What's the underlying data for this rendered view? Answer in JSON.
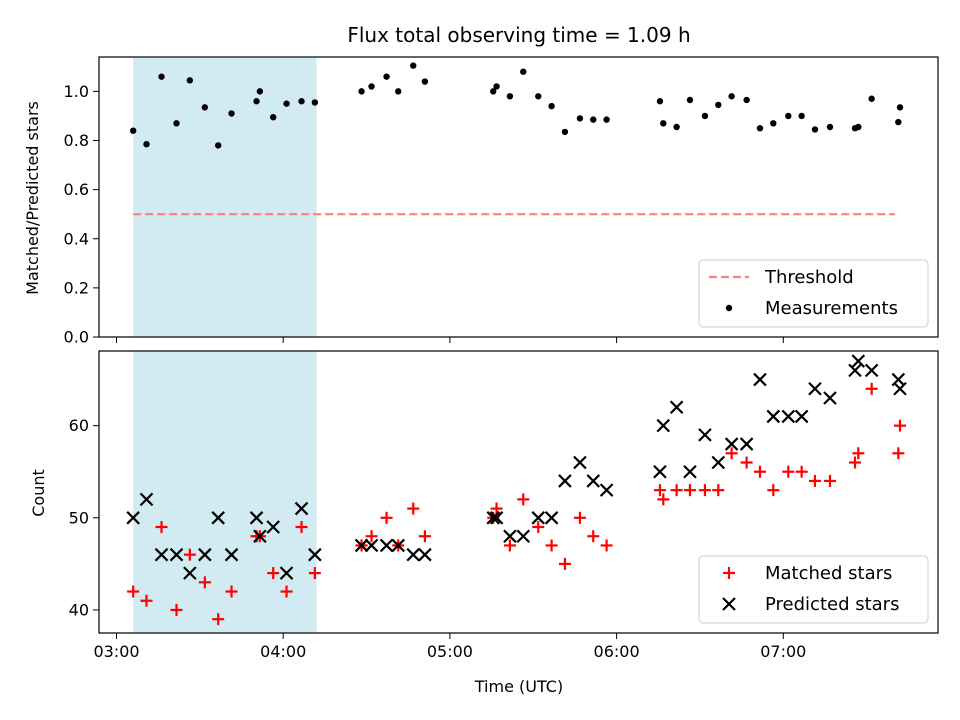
{
  "chart_data": {
    "title": "Flux total observing time = 1.09 h",
    "xlabel": "Time (UTC)",
    "x_ticks": [
      "03:00",
      "04:00",
      "05:00",
      "06:00",
      "07:00"
    ],
    "xlim_hours": [
      2.895,
      7.928
    ],
    "shaded_span_hours": [
      3.1,
      4.2
    ],
    "shade_color": "#add8e6",
    "panels": [
      {
        "type": "scatter",
        "ylabel": "Matched/Predicted stars",
        "ylim": [
          0,
          1.14
        ],
        "y_ticks": [
          0.0,
          0.2,
          0.4,
          0.6,
          0.8,
          1.0
        ],
        "threshold": {
          "name": "Threshold",
          "value": 0.5,
          "color": "#ff7f7f",
          "x_range_hours": [
            3.1,
            7.67
          ]
        },
        "series": [
          {
            "name": "Measurements",
            "marker": "dot",
            "color": "#000000",
            "x_hours": [
              3.1,
              3.18,
              3.27,
              3.36,
              3.44,
              3.53,
              3.61,
              3.69,
              3.84,
              3.86,
              3.94,
              4.02,
              4.11,
              4.19,
              4.47,
              4.53,
              4.62,
              4.69,
              4.78,
              4.85,
              5.26,
              5.28,
              5.36,
              5.44,
              5.53,
              5.61,
              5.69,
              5.78,
              5.86,
              5.94,
              6.26,
              6.28,
              6.36,
              6.44,
              6.53,
              6.61,
              6.69,
              6.78,
              6.86,
              6.94,
              7.03,
              7.11,
              7.19,
              7.28,
              7.43,
              7.45,
              7.53,
              7.69,
              7.7
            ],
            "y": [
              0.84,
              0.785,
              1.06,
              0.87,
              1.045,
              0.935,
              0.78,
              0.91,
              0.96,
              1.0,
              0.895,
              0.95,
              0.96,
              0.955,
              1.0,
              1.02,
              1.06,
              1.0,
              1.105,
              1.04,
              1.0,
              1.02,
              0.98,
              1.08,
              0.98,
              0.94,
              0.835,
              0.89,
              0.885,
              0.885,
              0.96,
              0.87,
              0.855,
              0.965,
              0.9,
              0.945,
              0.98,
              0.965,
              0.85,
              0.87,
              0.9,
              0.9,
              0.845,
              0.855,
              0.85,
              0.855,
              0.97,
              0.875,
              0.935
            ]
          }
        ],
        "legend": {
          "placement": "bottom-right",
          "entries": [
            "Threshold",
            "Measurements"
          ]
        }
      },
      {
        "type": "scatter",
        "ylabel": "Count",
        "ylim": [
          37.5,
          68.1
        ],
        "y_ticks": [
          40,
          50,
          60
        ],
        "series": [
          {
            "name": "Matched stars",
            "marker": "plus",
            "color": "#ff0000",
            "x_hours": [
              3.1,
              3.18,
              3.27,
              3.36,
              3.44,
              3.53,
              3.61,
              3.69,
              3.84,
              3.86,
              3.94,
              4.02,
              4.11,
              4.19,
              4.47,
              4.53,
              4.62,
              4.69,
              4.78,
              4.85,
              5.26,
              5.28,
              5.36,
              5.44,
              5.53,
              5.61,
              5.69,
              5.78,
              5.86,
              5.94,
              6.26,
              6.28,
              6.36,
              6.44,
              6.53,
              6.61,
              6.69,
              6.78,
              6.86,
              6.94,
              7.03,
              7.11,
              7.19,
              7.28,
              7.43,
              7.45,
              7.53,
              7.69,
              7.7
            ],
            "y": [
              42,
              41,
              49,
              40,
              46,
              43,
              39,
              42,
              48,
              48,
              44,
              42,
              49,
              44,
              47,
              48,
              50,
              47,
              51,
              48,
              50,
              51,
              47,
              52,
              49,
              47,
              45,
              50,
              48,
              47,
              53,
              52,
              53,
              53,
              53,
              53,
              57,
              56,
              55,
              53,
              55,
              55,
              54,
              54,
              56,
              57,
              64,
              57,
              60
            ]
          },
          {
            "name": "Predicted stars",
            "marker": "x",
            "color": "#000000",
            "x_hours": [
              3.1,
              3.18,
              3.27,
              3.36,
              3.44,
              3.53,
              3.61,
              3.69,
              3.84,
              3.86,
              3.94,
              4.02,
              4.11,
              4.19,
              4.47,
              4.53,
              4.62,
              4.69,
              4.78,
              4.85,
              5.26,
              5.28,
              5.36,
              5.44,
              5.53,
              5.61,
              5.69,
              5.78,
              5.86,
              5.94,
              6.26,
              6.28,
              6.36,
              6.44,
              6.53,
              6.61,
              6.69,
              6.78,
              6.86,
              6.94,
              7.03,
              7.11,
              7.19,
              7.28,
              7.43,
              7.45,
              7.53,
              7.69,
              7.7
            ],
            "y": [
              50,
              52,
              46,
              46,
              44,
              46,
              50,
              46,
              50,
              48,
              49,
              44,
              51,
              46,
              47,
              47,
              47,
              47,
              46,
              46,
              50,
              50,
              48,
              48,
              50,
              50,
              54,
              56,
              54,
              53,
              55,
              60,
              62,
              55,
              59,
              56,
              58,
              58,
              65,
              61,
              61,
              61,
              64,
              63,
              66,
              67,
              66,
              65,
              64
            ]
          }
        ],
        "legend": {
          "placement": "bottom-right",
          "entries": [
            "Matched stars",
            "Predicted stars"
          ]
        }
      }
    ]
  }
}
